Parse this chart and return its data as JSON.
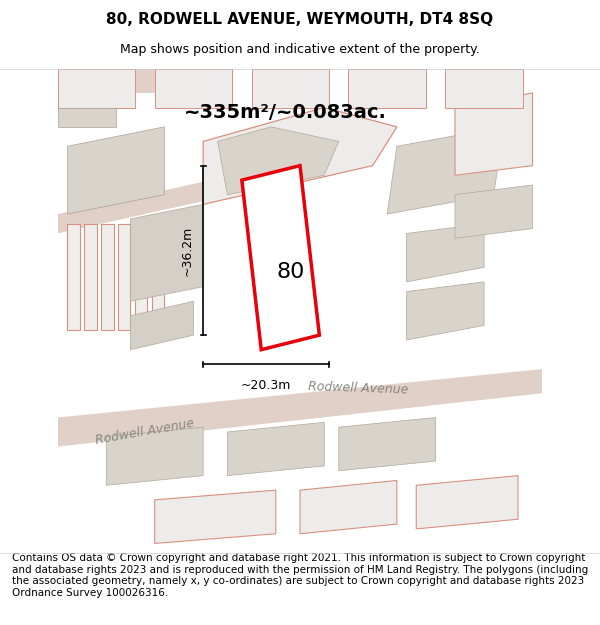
{
  "title": "80, RODWELL AVENUE, WEYMOUTH, DT4 8SQ",
  "subtitle": "Map shows position and indicative extent of the property.",
  "area_label": "~335m²/~0.083ac.",
  "property_number": "80",
  "dim_width": "~20.3m",
  "dim_height": "~36.2m",
  "road_label1": "Rodwell Avenue",
  "road_label2": "Rodwell Avenue",
  "footer": "Contains OS data © Crown copyright and database right 2021. This information is subject to Crown copyright and database rights 2023 and is reproduced with the permission of HM Land Registry. The polygons (including the associated geometry, namely x, y co-ordinates) are subject to Crown copyright and database rights 2023 Ordnance Survey 100026316.",
  "bg_color": "#f5f5f0",
  "map_bg": "#f0efeb",
  "road_color": "#e8d8d0",
  "building_fill": "#d8d4cc",
  "red_outline": "#e8000a",
  "white_fill": "#ffffff",
  "title_fontsize": 11,
  "subtitle_fontsize": 9,
  "footer_fontsize": 7.5
}
